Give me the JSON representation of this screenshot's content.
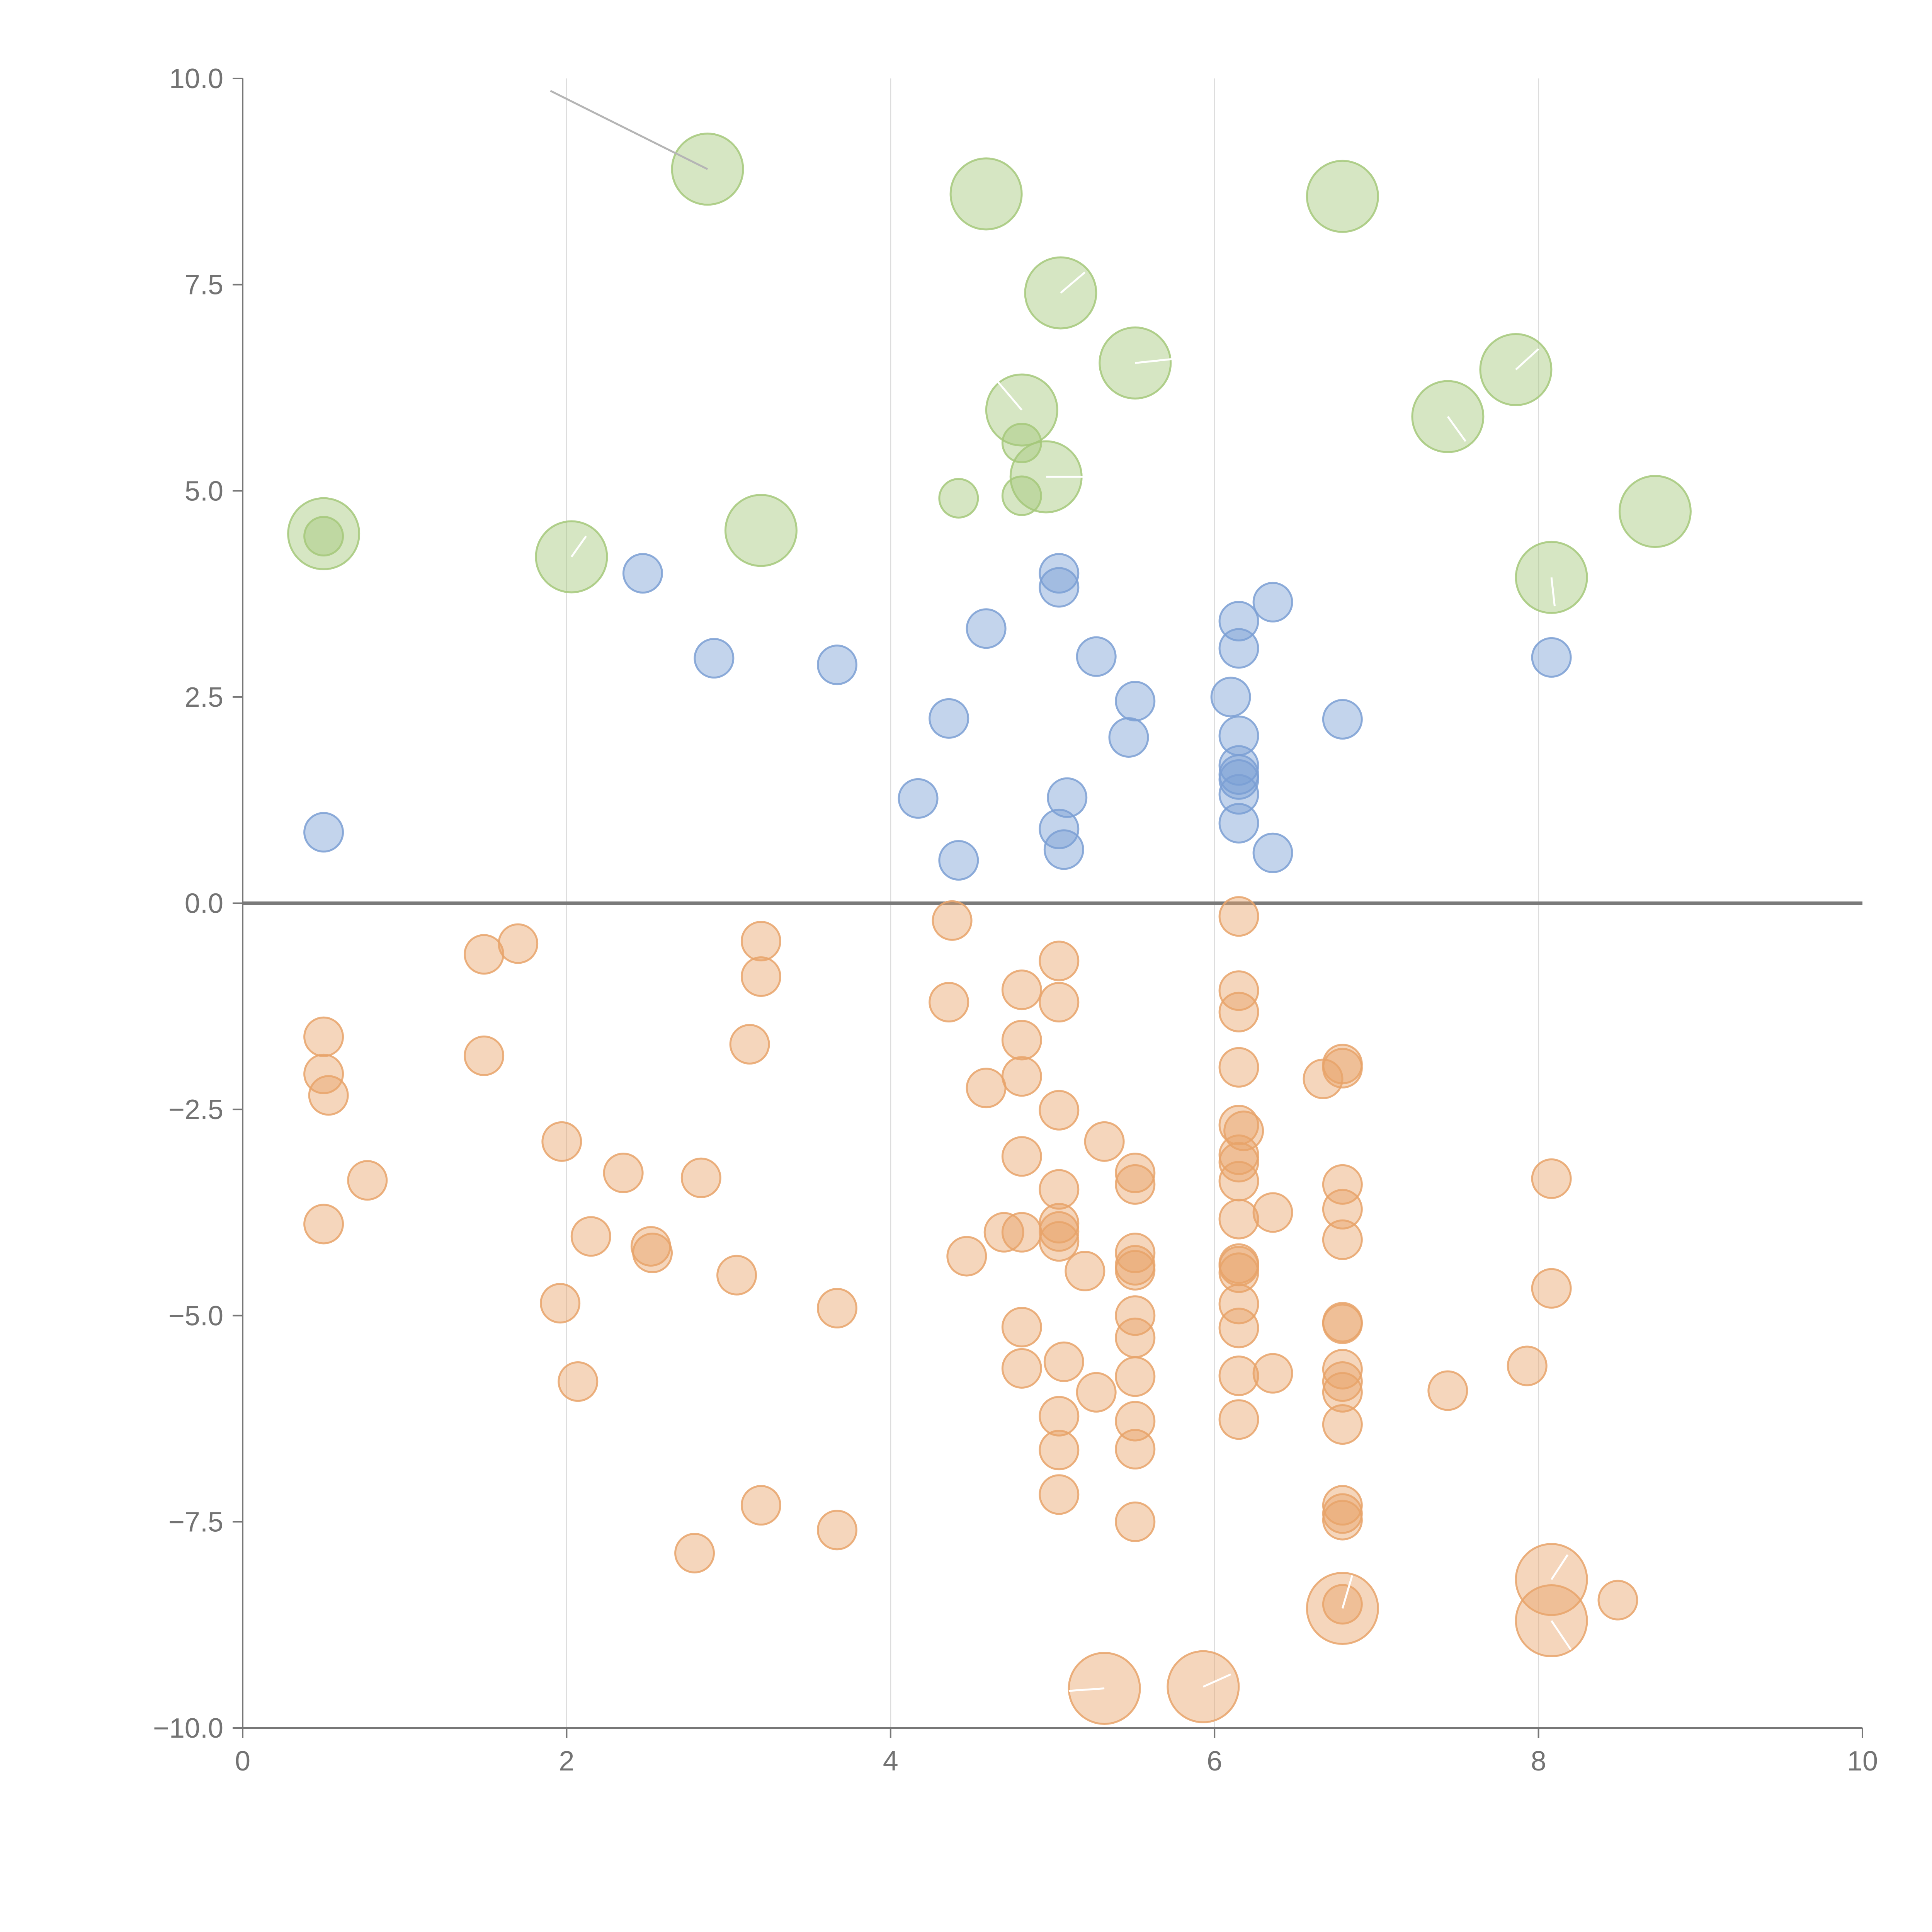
{
  "chart_data": {
    "type": "scatter",
    "title": "",
    "xlabel": "",
    "ylabel": "",
    "xlim": [
      0,
      10
    ],
    "ylim": [
      -10,
      10
    ],
    "x_ticks": [
      0,
      2,
      4,
      6,
      8,
      10
    ],
    "x_tick_labels": [
      "0",
      "2",
      "4",
      "6",
      "8",
      "10"
    ],
    "y_ticks": [
      10,
      7.5,
      5,
      2.5,
      0,
      -2.5,
      -5,
      -7.5,
      -10
    ],
    "y_tick_labels": [
      "10.0",
      "7.5",
      "5.0",
      "2.5",
      "0.0",
      "−2.5",
      "−5.0",
      "−7.5",
      "−10.0"
    ],
    "vertical_gridlines_at": [
      2,
      4,
      6,
      8
    ],
    "zero_line_y": 0,
    "series": [
      {
        "name": "large-positive",
        "color": "#a5c87a",
        "points": [
          {
            "x": 2.87,
            "y": 8.9,
            "size": 1.0
          },
          {
            "x": 4.59,
            "y": 8.6,
            "size": 1.0
          },
          {
            "x": 6.79,
            "y": 8.57,
            "size": 1.0
          },
          {
            "x": 5.05,
            "y": 7.4,
            "size": 1.0
          },
          {
            "x": 5.51,
            "y": 6.55,
            "size": 1.0
          },
          {
            "x": 7.86,
            "y": 6.47,
            "size": 1.0
          },
          {
            "x": 4.81,
            "y": 5.98,
            "size": 1.0
          },
          {
            "x": 7.44,
            "y": 5.9,
            "size": 1.0
          },
          {
            "x": 4.96,
            "y": 5.17,
            "size": 1.0
          },
          {
            "x": 8.72,
            "y": 4.75,
            "size": 1.0
          },
          {
            "x": 0.5,
            "y": 4.48,
            "size": 1.0
          },
          {
            "x": 3.2,
            "y": 4.52,
            "size": 1.0
          },
          {
            "x": 2.03,
            "y": 4.2,
            "size": 1.0
          },
          {
            "x": 8.08,
            "y": 3.95,
            "size": 1.0
          },
          {
            "x": 4.81,
            "y": 5.58,
            "size": 0.48
          },
          {
            "x": 4.42,
            "y": 4.91,
            "size": 0.48
          },
          {
            "x": 4.81,
            "y": 4.94,
            "size": 0.48
          },
          {
            "x": 0.5,
            "y": 4.45,
            "size": 0.48
          }
        ]
      },
      {
        "name": "positive",
        "color": "#7b9fd4",
        "points": [
          {
            "x": 2.47,
            "y": 4.0
          },
          {
            "x": 5.04,
            "y": 4.0
          },
          {
            "x": 5.04,
            "y": 3.83
          },
          {
            "x": 6.36,
            "y": 3.65
          },
          {
            "x": 6.15,
            "y": 3.42
          },
          {
            "x": 4.59,
            "y": 3.33
          },
          {
            "x": 6.15,
            "y": 3.09
          },
          {
            "x": 2.91,
            "y": 2.97
          },
          {
            "x": 5.27,
            "y": 2.99
          },
          {
            "x": 8.08,
            "y": 2.98
          },
          {
            "x": 3.67,
            "y": 2.89
          },
          {
            "x": 6.1,
            "y": 2.5
          },
          {
            "x": 5.51,
            "y": 2.45
          },
          {
            "x": 4.36,
            "y": 2.24
          },
          {
            "x": 6.79,
            "y": 2.23
          },
          {
            "x": 5.47,
            "y": 2.01
          },
          {
            "x": 6.15,
            "y": 2.03
          },
          {
            "x": 6.15,
            "y": 1.67
          },
          {
            "x": 6.15,
            "y": 1.56
          },
          {
            "x": 6.15,
            "y": 1.5
          },
          {
            "x": 6.15,
            "y": 1.32
          },
          {
            "x": 4.17,
            "y": 1.27
          },
          {
            "x": 5.09,
            "y": 1.28
          },
          {
            "x": 6.15,
            "y": 0.97
          },
          {
            "x": 5.04,
            "y": 0.9
          },
          {
            "x": 0.5,
            "y": 0.86
          },
          {
            "x": 5.07,
            "y": 0.65
          },
          {
            "x": 6.36,
            "y": 0.61
          },
          {
            "x": 4.42,
            "y": 0.52
          }
        ]
      },
      {
        "name": "negative",
        "color": "#e8a36a",
        "points": [
          {
            "x": 4.38,
            "y": -0.21
          },
          {
            "x": 6.15,
            "y": -0.16
          },
          {
            "x": 1.7,
            "y": -0.49
          },
          {
            "x": 3.2,
            "y": -0.46
          },
          {
            "x": 1.49,
            "y": -0.62
          },
          {
            "x": 5.04,
            "y": -0.7
          },
          {
            "x": 3.2,
            "y": -0.89
          },
          {
            "x": 4.81,
            "y": -1.05
          },
          {
            "x": 6.15,
            "y": -1.06
          },
          {
            "x": 4.36,
            "y": -1.2
          },
          {
            "x": 5.04,
            "y": -1.2
          },
          {
            "x": 6.15,
            "y": -1.32
          },
          {
            "x": 0.5,
            "y": -1.62
          },
          {
            "x": 3.13,
            "y": -1.71
          },
          {
            "x": 4.81,
            "y": -1.66
          },
          {
            "x": 1.49,
            "y": -1.85
          },
          {
            "x": 6.15,
            "y": -1.99
          },
          {
            "x": 6.79,
            "y": -1.95
          },
          {
            "x": 6.79,
            "y": -2.0
          },
          {
            "x": 0.5,
            "y": -2.07
          },
          {
            "x": 4.81,
            "y": -2.1
          },
          {
            "x": 6.67,
            "y": -2.13
          },
          {
            "x": 4.59,
            "y": -2.24
          },
          {
            "x": 0.53,
            "y": -2.33
          },
          {
            "x": 5.04,
            "y": -2.51
          },
          {
            "x": 6.15,
            "y": -2.69
          },
          {
            "x": 6.18,
            "y": -2.76
          },
          {
            "x": 1.97,
            "y": -2.89
          },
          {
            "x": 5.32,
            "y": -2.89
          },
          {
            "x": 4.81,
            "y": -3.07
          },
          {
            "x": 6.15,
            "y": -3.05
          },
          {
            "x": 6.15,
            "y": -3.14
          },
          {
            "x": 2.35,
            "y": -3.27
          },
          {
            "x": 5.51,
            "y": -3.27
          },
          {
            "x": 0.77,
            "y": -3.36
          },
          {
            "x": 2.83,
            "y": -3.33
          },
          {
            "x": 6.15,
            "y": -3.37
          },
          {
            "x": 8.08,
            "y": -3.34
          },
          {
            "x": 5.51,
            "y": -3.41
          },
          {
            "x": 6.79,
            "y": -3.41
          },
          {
            "x": 5.04,
            "y": -3.47
          },
          {
            "x": 6.79,
            "y": -3.71
          },
          {
            "x": 6.36,
            "y": -3.75
          },
          {
            "x": 6.15,
            "y": -3.83
          },
          {
            "x": 5.04,
            "y": -3.88
          },
          {
            "x": 0.5,
            "y": -3.89
          },
          {
            "x": 5.04,
            "y": -3.98
          },
          {
            "x": 4.7,
            "y": -3.99
          },
          {
            "x": 4.81,
            "y": -3.99
          },
          {
            "x": 2.15,
            "y": -4.04
          },
          {
            "x": 6.79,
            "y": -4.08
          },
          {
            "x": 5.04,
            "y": -4.1
          },
          {
            "x": 2.52,
            "y": -4.16
          },
          {
            "x": 2.53,
            "y": -4.24
          },
          {
            "x": 5.51,
            "y": -4.24
          },
          {
            "x": 4.47,
            "y": -4.28
          },
          {
            "x": 6.15,
            "y": -4.37
          },
          {
            "x": 5.51,
            "y": -4.39
          },
          {
            "x": 6.15,
            "y": -4.4
          },
          {
            "x": 5.51,
            "y": -4.45
          },
          {
            "x": 5.2,
            "y": -4.46
          },
          {
            "x": 6.15,
            "y": -4.48
          },
          {
            "x": 3.05,
            "y": -4.51
          },
          {
            "x": 8.08,
            "y": -4.67
          },
          {
            "x": 1.96,
            "y": -4.85
          },
          {
            "x": 6.15,
            "y": -4.86
          },
          {
            "x": 3.67,
            "y": -4.91
          },
          {
            "x": 5.51,
            "y": -5.0
          },
          {
            "x": 6.79,
            "y": -5.08
          },
          {
            "x": 6.79,
            "y": -5.1
          },
          {
            "x": 4.81,
            "y": -5.14
          },
          {
            "x": 6.15,
            "y": -5.15
          },
          {
            "x": 5.51,
            "y": -5.27
          },
          {
            "x": 5.07,
            "y": -5.56
          },
          {
            "x": 7.93,
            "y": -5.61
          },
          {
            "x": 4.81,
            "y": -5.64
          },
          {
            "x": 6.79,
            "y": -5.65
          },
          {
            "x": 6.36,
            "y": -5.7
          },
          {
            "x": 6.15,
            "y": -5.73
          },
          {
            "x": 5.51,
            "y": -5.74
          },
          {
            "x": 6.79,
            "y": -5.8
          },
          {
            "x": 2.07,
            "y": -5.8
          },
          {
            "x": 7.44,
            "y": -5.91
          },
          {
            "x": 5.27,
            "y": -5.93
          },
          {
            "x": 6.79,
            "y": -5.93
          },
          {
            "x": 5.04,
            "y": -6.22
          },
          {
            "x": 6.15,
            "y": -6.26
          },
          {
            "x": 5.51,
            "y": -6.28
          },
          {
            "x": 6.79,
            "y": -6.32
          },
          {
            "x": 5.04,
            "y": -6.63
          },
          {
            "x": 5.51,
            "y": -6.62
          },
          {
            "x": 5.04,
            "y": -7.17
          },
          {
            "x": 3.2,
            "y": -7.3
          },
          {
            "x": 6.79,
            "y": -7.3
          },
          {
            "x": 6.79,
            "y": -7.4
          },
          {
            "x": 6.79,
            "y": -7.48
          },
          {
            "x": 5.51,
            "y": -7.5
          },
          {
            "x": 3.67,
            "y": -7.6
          },
          {
            "x": 2.79,
            "y": -7.88
          },
          {
            "x": 6.79,
            "y": -8.5
          },
          {
            "x": 8.49,
            "y": -8.45
          }
        ]
      },
      {
        "name": "large-negative",
        "color": "#e8a36a",
        "points": [
          {
            "x": 8.08,
            "y": -8.2,
            "size": 1.0
          },
          {
            "x": 6.79,
            "y": -8.55,
            "size": 1.0
          },
          {
            "x": 8.08,
            "y": -8.7,
            "size": 1.0
          },
          {
            "x": 5.32,
            "y": -9.52,
            "size": 1.0
          },
          {
            "x": 5.93,
            "y": -9.5,
            "size": 1.0
          }
        ]
      }
    ],
    "annotations": [
      {
        "from": [
          1.9,
          9.85
        ],
        "to": [
          2.87,
          8.9
        ],
        "color": "#b5b5b5"
      },
      {
        "from": [
          2.03,
          4.2
        ],
        "to": [
          2.12,
          4.45
        ],
        "color": "#ffffff"
      },
      {
        "from": [
          4.81,
          5.98
        ],
        "to": [
          4.65,
          6.35
        ],
        "color": "#ffffff"
      },
      {
        "from": [
          4.96,
          5.17
        ],
        "to": [
          5.24,
          5.17
        ],
        "color": "#ffffff"
      },
      {
        "from": [
          5.05,
          7.4
        ],
        "to": [
          5.2,
          7.65
        ],
        "color": "#ffffff"
      },
      {
        "from": [
          5.51,
          6.55
        ],
        "to": [
          5.75,
          6.6
        ],
        "color": "#ffffff"
      },
      {
        "from": [
          7.86,
          6.47
        ],
        "to": [
          8.0,
          6.72
        ],
        "color": "#ffffff"
      },
      {
        "from": [
          7.44,
          5.9
        ],
        "to": [
          7.55,
          5.6
        ],
        "color": "#ffffff"
      },
      {
        "from": [
          8.08,
          3.95
        ],
        "to": [
          8.1,
          3.6
        ],
        "color": "#ffffff"
      },
      {
        "from": [
          8.08,
          -8.2
        ],
        "to": [
          8.18,
          -7.9
        ],
        "color": "#ffffff"
      },
      {
        "from": [
          6.79,
          -8.55
        ],
        "to": [
          6.85,
          -8.15
        ],
        "color": "#ffffff"
      },
      {
        "from": [
          8.08,
          -8.7
        ],
        "to": [
          8.2,
          -9.05
        ],
        "color": "#ffffff"
      },
      {
        "from": [
          5.32,
          -9.52
        ],
        "to": [
          5.1,
          -9.55
        ],
        "color": "#ffffff"
      },
      {
        "from": [
          5.93,
          -9.5
        ],
        "to": [
          6.1,
          -9.35
        ],
        "color": "#ffffff"
      }
    ]
  }
}
